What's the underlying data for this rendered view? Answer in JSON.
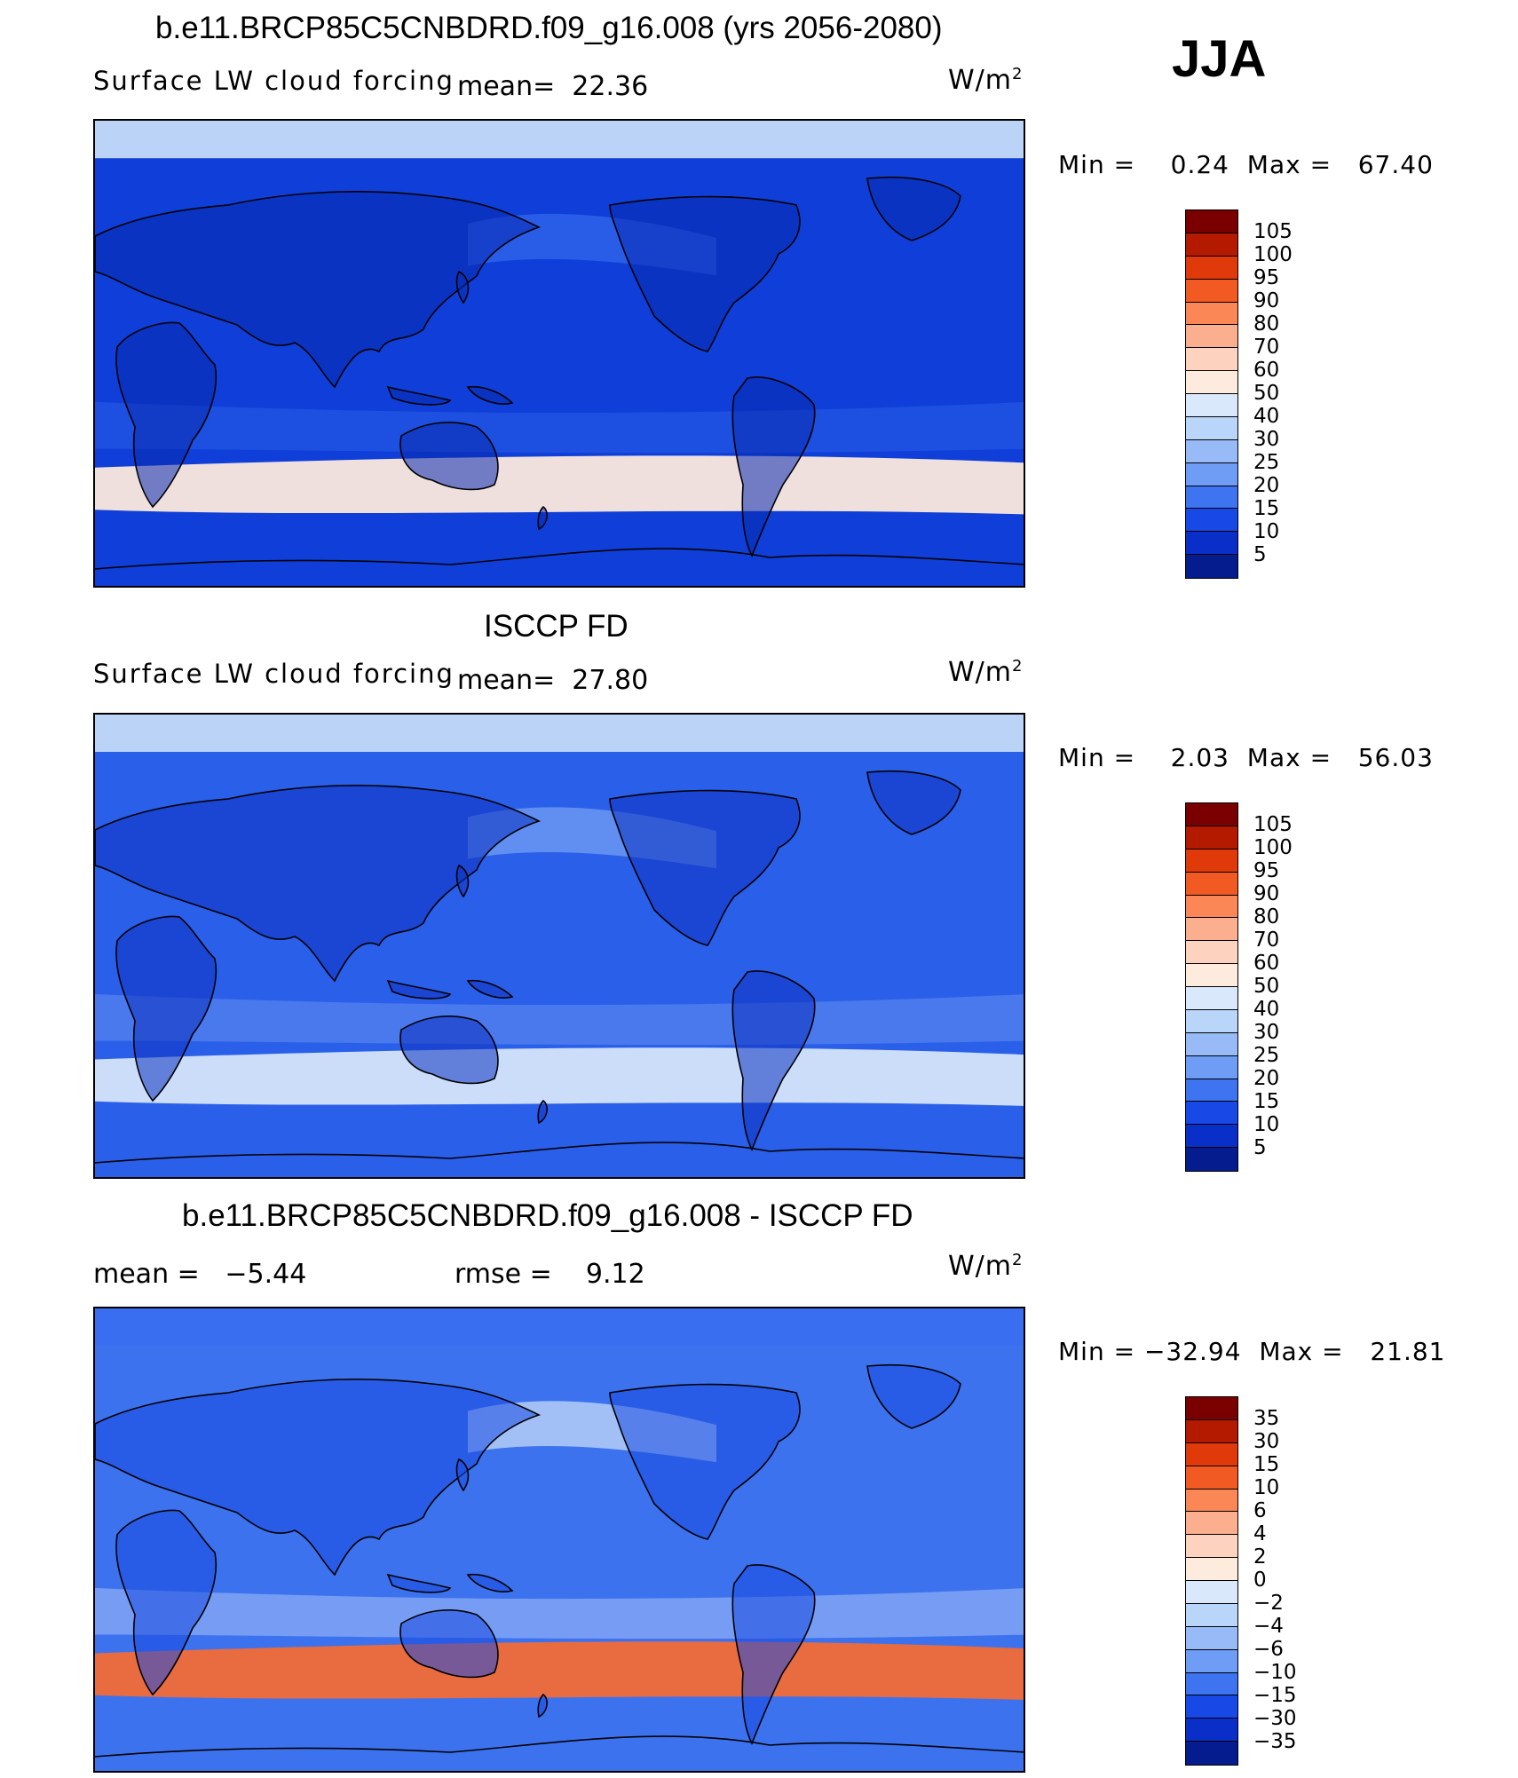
{
  "season": "JJA",
  "panels": [
    {
      "title": "b.e11.BRCP85C5CNBDRD.f09_g16.008 (yrs 2056-2080)",
      "left_label": "Surface LW cloud forcing",
      "stat": "mean=  22.36",
      "units": "W/m",
      "units_exp": "2",
      "minmax": "Min =    0.24  Max =   67.40",
      "colorbar_levels": [
        "105",
        "100",
        "95",
        "90",
        "80",
        "70",
        "60",
        "50",
        "40",
        "30",
        "25",
        "20",
        "15",
        "10",
        "5"
      ],
      "colorbar_colors": [
        "#7a0000",
        "#b41a00",
        "#e03a0a",
        "#f25a24",
        "#fb8656",
        "#fbaf8f",
        "#fdd3bf",
        "#fdecde",
        "#d9e9fb",
        "#bad5fa",
        "#98bbf8",
        "#6f9cf5",
        "#3e74f0",
        "#1848e6",
        "#0a2fc8",
        "#041c8e"
      ],
      "map_field": {
        "ocean": "#0f3fd8",
        "land_lowlat": "#0a2ab0",
        "south_band": "#fde9dd",
        "arctic": "#bcd3f8",
        "subtrop_belt": "#2f65ec"
      }
    },
    {
      "title": "ISCCP FD",
      "left_label": "Surface LW cloud forcing",
      "stat": "mean=  27.80",
      "units": "W/m",
      "units_exp": "2",
      "minmax": "Min =    2.03  Max =   56.03",
      "colorbar_levels": [
        "105",
        "100",
        "95",
        "90",
        "80",
        "70",
        "60",
        "50",
        "40",
        "30",
        "25",
        "20",
        "15",
        "10",
        "5"
      ],
      "colorbar_colors": [
        "#7a0000",
        "#b41a00",
        "#e03a0a",
        "#f25a24",
        "#fb8656",
        "#fbaf8f",
        "#fdd3bf",
        "#fdecde",
        "#d9e9fb",
        "#bad5fa",
        "#98bbf8",
        "#6f9cf5",
        "#3e74f0",
        "#1848e6",
        "#0a2fc8",
        "#041c8e"
      ],
      "map_field": {
        "ocean": "#2a5fea",
        "land_lowlat": "#0c32c0",
        "south_band": "#d4e4fa",
        "arctic": "#bcd3f8",
        "subtrop_belt": "#6e9af2"
      }
    },
    {
      "title": "b.e11.BRCP85C5CNBDRD.f09_g16.008 - ISCCP FD",
      "left_label": "mean =   −5.44",
      "stat": "rmse =    9.12",
      "units": "W/m",
      "units_exp": "2",
      "minmax": "Min = −32.94  Max =   21.81",
      "colorbar_levels": [
        "35",
        "30",
        "15",
        "10",
        "6",
        "4",
        "2",
        "0",
        "−2",
        "−4",
        "−6",
        "−10",
        "−15",
        "−30",
        "−35"
      ],
      "colorbar_colors": [
        "#7a0000",
        "#b41a00",
        "#e03a0a",
        "#f25a24",
        "#fb8656",
        "#fbaf8f",
        "#fdd3bf",
        "#fdecde",
        "#d9e9fb",
        "#bad5fa",
        "#98bbf8",
        "#6f9cf5",
        "#3e74f0",
        "#1848e6",
        "#0a2fc8",
        "#041c8e"
      ],
      "map_field": {
        "ocean": "#3d72ee",
        "land_lowlat": "#1a4ae0",
        "south_band": "#f26a36",
        "arctic": "#3a6ef0",
        "subtrop_belt": "#bcd3f8"
      }
    }
  ]
}
